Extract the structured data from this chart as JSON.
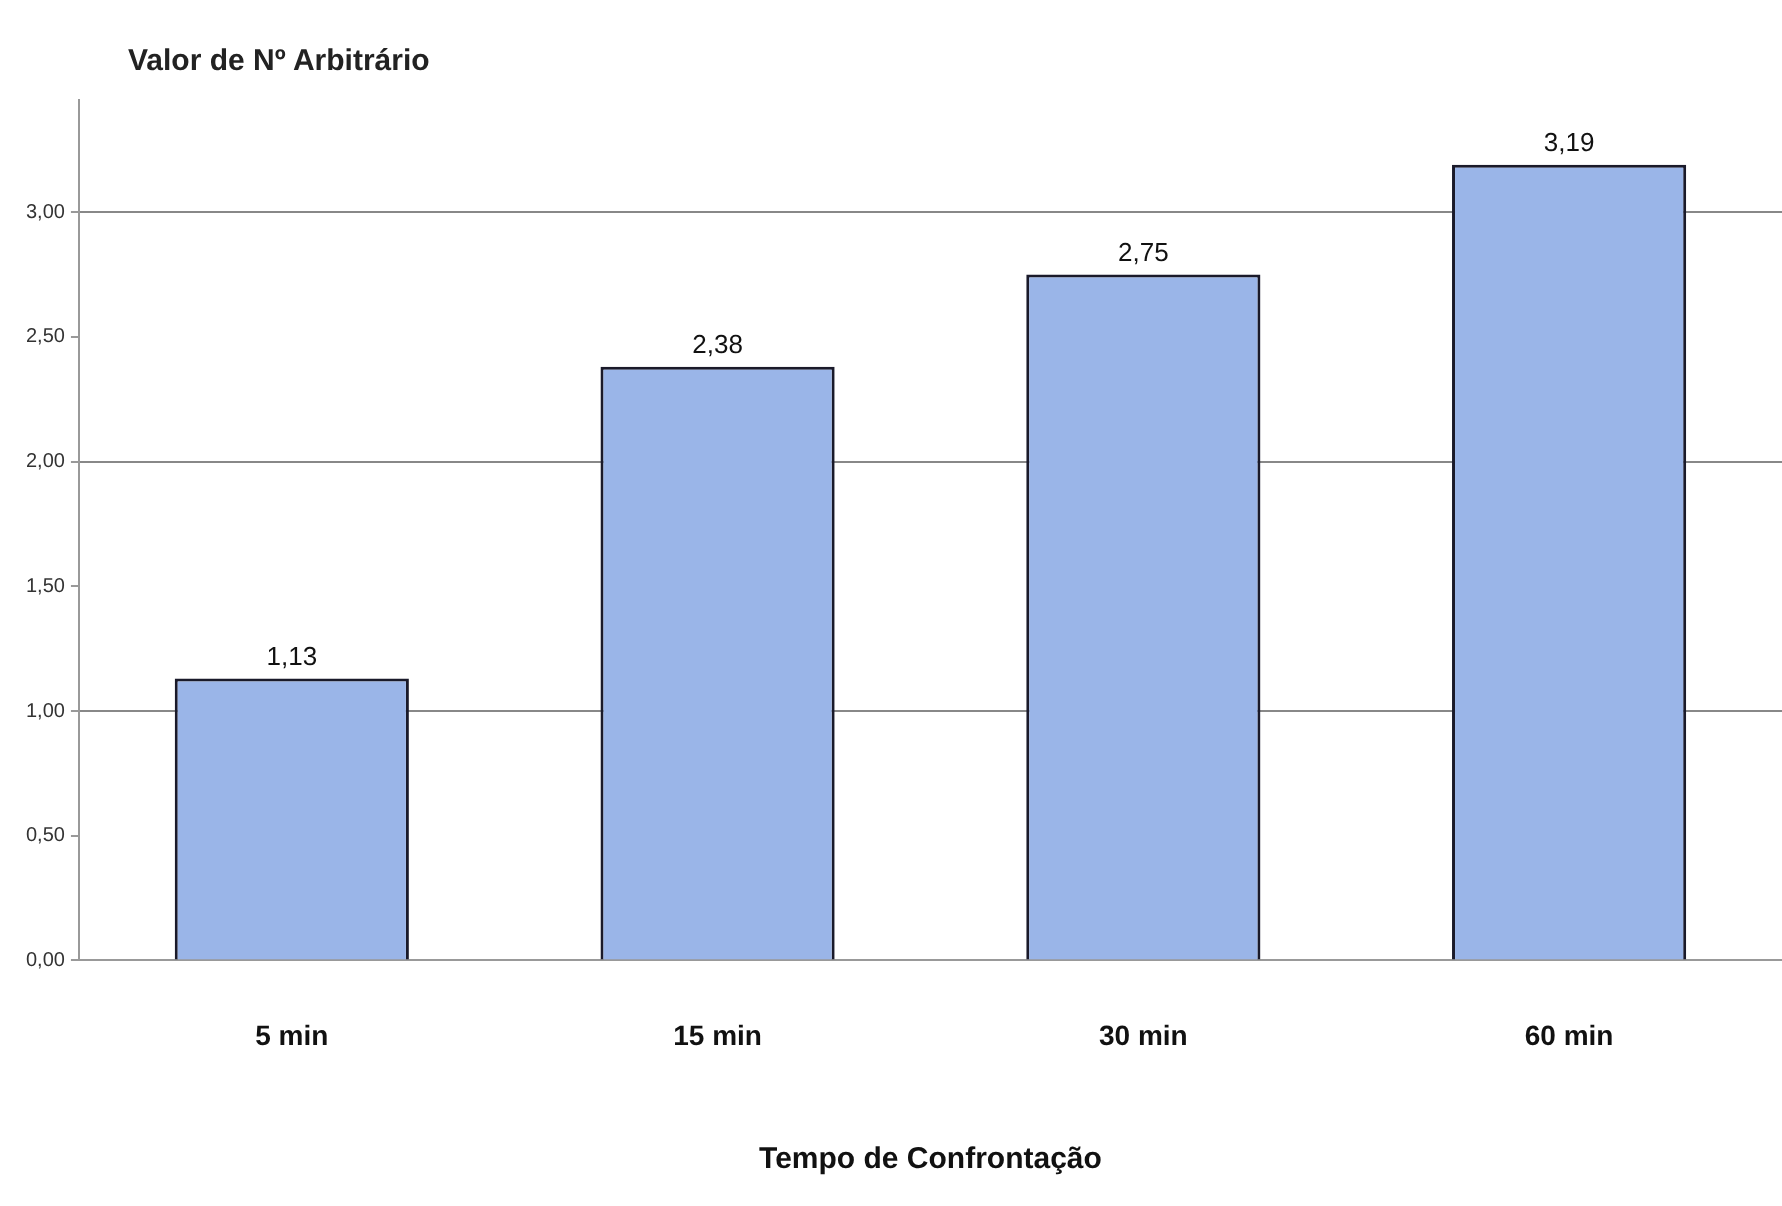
{
  "chart_data": {
    "type": "bar",
    "ylabel": "Valor de Nº Arbitrário",
    "xlabel": "Tempo de Confrontação",
    "categories": [
      "5 min",
      "15 min",
      "30 min",
      "60 min"
    ],
    "values": [
      1.13,
      2.38,
      2.75,
      3.19
    ],
    "value_labels": [
      "1,13",
      "2,38",
      "2,75",
      "3,19"
    ],
    "color": "#9ab5e8",
    "ylim": [
      0,
      3.45
    ],
    "yticks": [
      {
        "value": 0,
        "label": "0,00"
      },
      {
        "value": 0.5,
        "label": "0,50"
      },
      {
        "value": 1,
        "label": "1,00"
      },
      {
        "value": 1.5,
        "label": "1,50"
      },
      {
        "value": 2,
        "label": "2,00"
      },
      {
        "value": 2.5,
        "label": "2,50"
      },
      {
        "value": 3,
        "label": "3,00"
      }
    ],
    "grid": "y",
    "legend": false
  }
}
